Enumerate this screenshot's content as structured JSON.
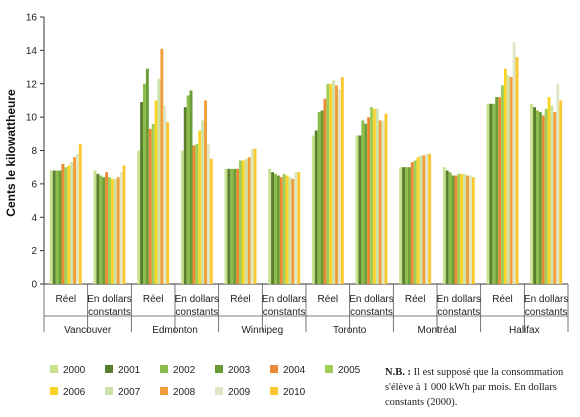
{
  "chart_data": {
    "type": "bar",
    "ylabel": "Cents le kilowattheure",
    "ylim": [
      0,
      16
    ],
    "yticks": [
      0,
      2,
      4,
      6,
      8,
      10,
      12,
      14,
      16
    ],
    "grid": false,
    "legend_position": "bottom",
    "subcategory_labels": [
      "Réel",
      "En dollars constants"
    ],
    "cities": [
      "Vancouver",
      "Edmonton",
      "Winnipeg",
      "Toronto",
      "Montréal",
      "Halifax"
    ],
    "groups": [
      {
        "city": "Vancouver",
        "sub": "Réel",
        "values": [
          6.8,
          6.8,
          6.8,
          6.8,
          7.2,
          7.0,
          7.1,
          7.3,
          7.6,
          7.8,
          8.4
        ]
      },
      {
        "city": "Vancouver",
        "sub": "En dollars constants",
        "values": [
          6.8,
          6.6,
          6.5,
          6.4,
          6.7,
          6.4,
          6.3,
          6.3,
          6.4,
          6.7,
          7.1
        ]
      },
      {
        "city": "Edmonton",
        "sub": "Réel",
        "values": [
          8.0,
          10.9,
          12.0,
          12.9,
          9.3,
          9.6,
          11.0,
          12.3,
          14.1,
          10.7,
          9.7
        ]
      },
      {
        "city": "Edmonton",
        "sub": "En dollars constants",
        "values": [
          8.0,
          10.6,
          11.3,
          11.6,
          8.3,
          8.4,
          9.2,
          9.8,
          11.0,
          8.4,
          7.5
        ]
      },
      {
        "city": "Winnipeg",
        "sub": "Réel",
        "values": [
          6.9,
          6.9,
          6.9,
          6.9,
          6.9,
          7.4,
          7.4,
          7.5,
          7.6,
          8.1,
          8.1
        ]
      },
      {
        "city": "Winnipeg",
        "sub": "En dollars constants",
        "values": [
          6.9,
          6.7,
          6.6,
          6.5,
          6.4,
          6.6,
          6.5,
          6.4,
          6.3,
          6.7,
          6.7
        ]
      },
      {
        "city": "Toronto",
        "sub": "Réel",
        "values": [
          8.9,
          9.2,
          10.3,
          10.4,
          11.1,
          12.0,
          12.0,
          12.2,
          11.9,
          11.7,
          12.4
        ]
      },
      {
        "city": "Toronto",
        "sub": "En dollars constants",
        "values": [
          8.9,
          8.9,
          9.8,
          9.6,
          10.0,
          10.6,
          10.5,
          10.5,
          9.8,
          9.8,
          10.2
        ]
      },
      {
        "city": "Montréal",
        "sub": "Réel",
        "values": [
          7.0,
          7.0,
          7.0,
          7.0,
          7.3,
          7.4,
          7.6,
          7.7,
          7.7,
          7.8,
          7.8
        ]
      },
      {
        "city": "Montréal",
        "sub": "En dollars constants",
        "values": [
          7.0,
          6.8,
          6.7,
          6.5,
          6.5,
          6.6,
          6.6,
          6.6,
          6.5,
          6.5,
          6.4
        ]
      },
      {
        "city": "Halifax",
        "sub": "Réel",
        "values": [
          10.8,
          10.8,
          10.8,
          11.2,
          11.2,
          11.9,
          12.9,
          12.5,
          12.4,
          14.5,
          13.6
        ]
      },
      {
        "city": "Halifax",
        "sub": "En dollars constants",
        "values": [
          10.8,
          10.6,
          10.4,
          10.3,
          10.1,
          10.5,
          11.2,
          10.7,
          10.3,
          12.0,
          11.0
        ]
      }
    ],
    "series": [
      {
        "name": "2000",
        "color": "#c9e28f"
      },
      {
        "name": "2001",
        "color": "#5a7f2e"
      },
      {
        "name": "2002",
        "color": "#8cbd4c"
      },
      {
        "name": "2003",
        "color": "#6a9d35"
      },
      {
        "name": "2004",
        "color": "#ea8a35"
      },
      {
        "name": "2005",
        "color": "#9fcd5a"
      },
      {
        "name": "2006",
        "color": "#fbd428"
      },
      {
        "name": "2007",
        "color": "#cde2a8"
      },
      {
        "name": "2008",
        "color": "#f39c3a"
      },
      {
        "name": "2009",
        "color": "#dfe8c6"
      },
      {
        "name": "2010",
        "color": "#fcc832"
      }
    ]
  },
  "note": {
    "bold": "N.B. :",
    "text": " Il est supposé que la consommation s'élève à 1 000 kWh par mois. En dollars constants (2000)."
  }
}
